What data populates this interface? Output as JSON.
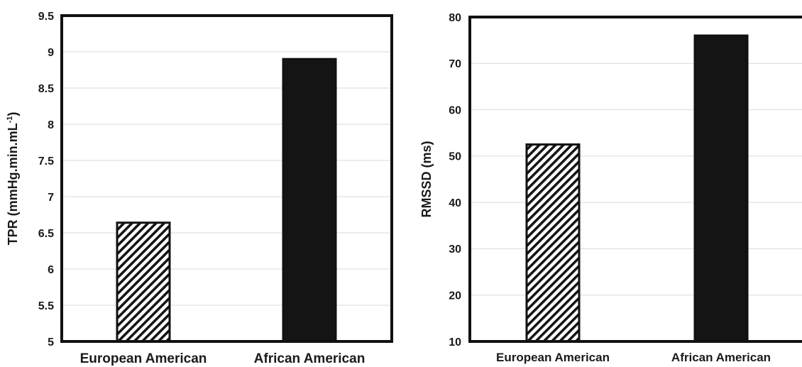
{
  "chart_data": [
    {
      "type": "bar",
      "categories": [
        "European American",
        "African American"
      ],
      "values": [
        6.64,
        8.9
      ],
      "ylabel": "TPR (mmHg.min.mL-1)",
      "ylabel_main": "TPR (mmHg.min.mL",
      "ylabel_sup": "-1",
      "ylabel_tail": ")",
      "ylim": [
        5,
        9.5
      ],
      "yticks": [
        "5",
        "5.5",
        "6",
        "6.5",
        "7",
        "7.5",
        "8",
        "8.5",
        "9",
        "9.5"
      ],
      "grid": true,
      "legend": "none",
      "bar_styles": [
        "hatched",
        "solid"
      ]
    },
    {
      "type": "bar",
      "categories": [
        "European American",
        "African American"
      ],
      "values": [
        52.5,
        76
      ],
      "ylabel": "RMSSD (ms)",
      "ylim": [
        10,
        80
      ],
      "yticks": [
        "10",
        "20",
        "30",
        "40",
        "50",
        "60",
        "70",
        "80"
      ],
      "grid": true,
      "legend": "none",
      "bar_styles": [
        "hatched",
        "solid"
      ]
    }
  ],
  "colors": {
    "bar_solid": "#141414",
    "axis": "#111111",
    "grid": "#d9d9d9"
  }
}
